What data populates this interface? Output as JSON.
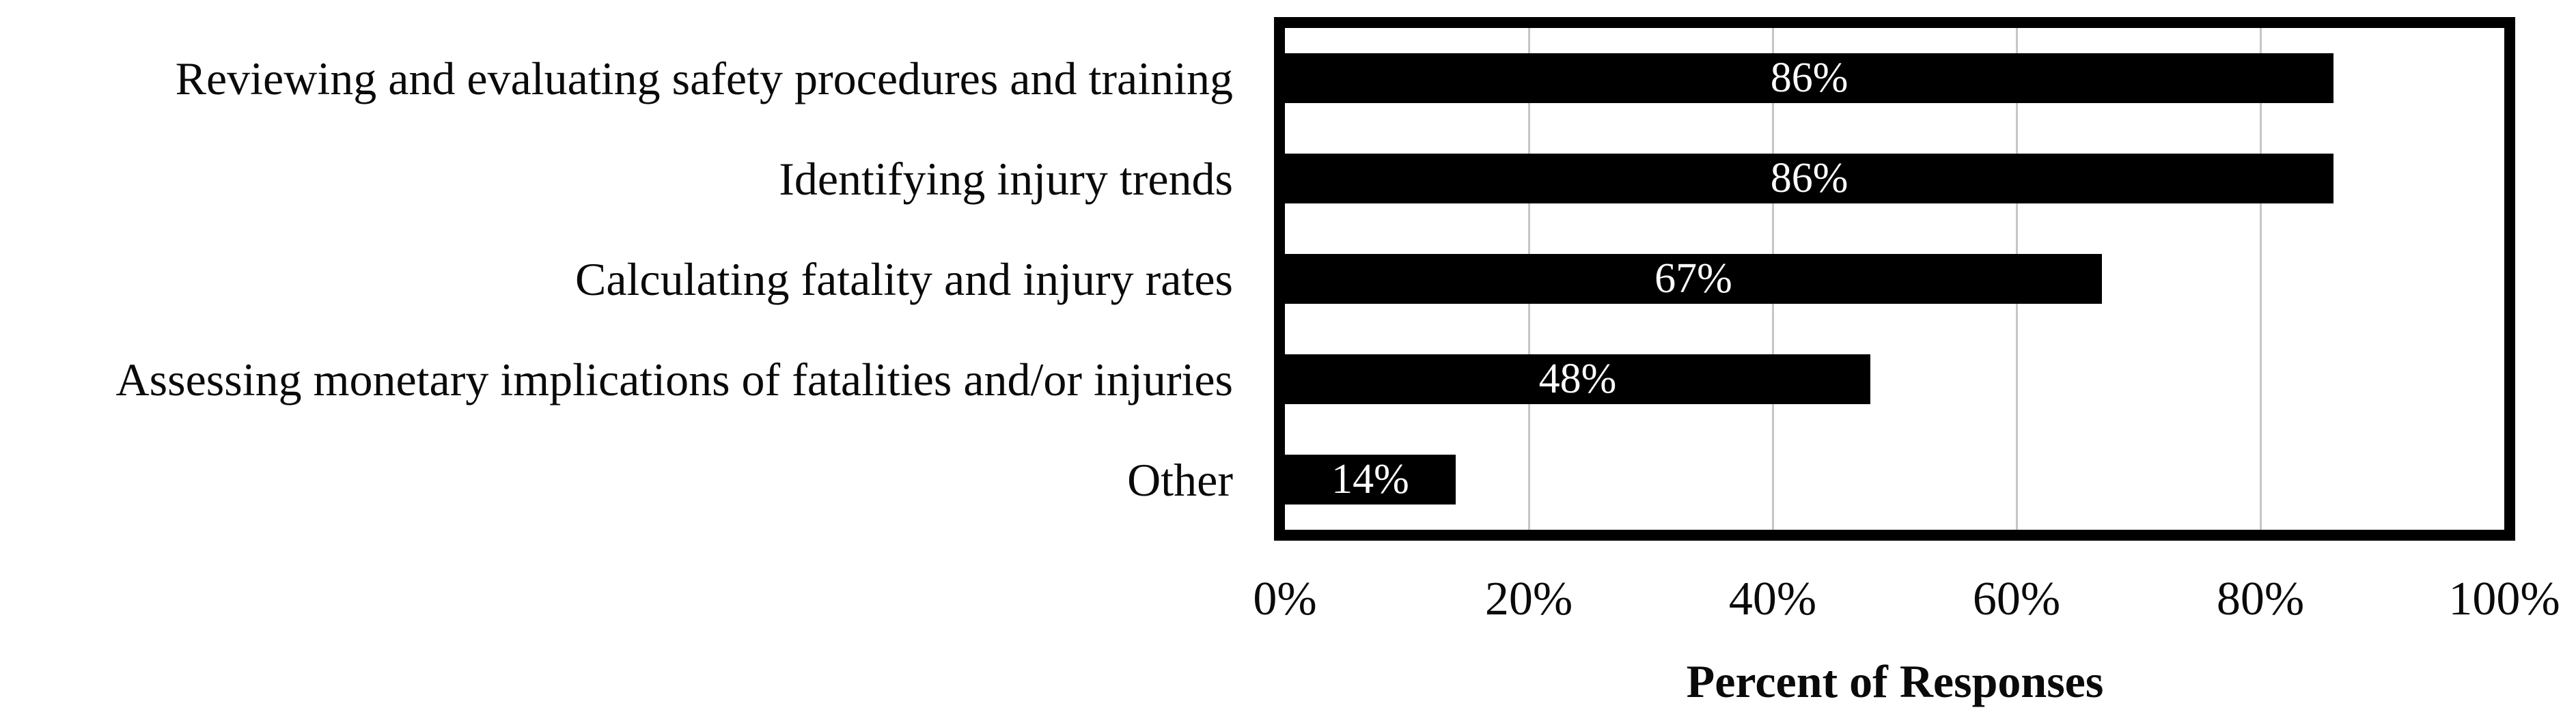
{
  "chart_data": {
    "type": "bar",
    "orientation": "horizontal",
    "title": "",
    "categories": [
      "Reviewing and evaluating safety procedures and training",
      "Identifying injury trends",
      "Calculating fatality and injury rates",
      "Assessing monetary implications of fatalities and/or injuries",
      "Other"
    ],
    "values": [
      86,
      86,
      67,
      48,
      14
    ],
    "value_labels": [
      "86%",
      "86%",
      "67%",
      "48%",
      "14%"
    ],
    "xlabel": "Percent of Responses",
    "ylabel": "",
    "x_ticks": [
      "0%",
      "20%",
      "40%",
      "60%",
      "80%",
      "100%"
    ],
    "x_tick_values": [
      0,
      20,
      40,
      60,
      80,
      100
    ],
    "xlim": [
      0,
      100
    ],
    "grid": "vertical-gridlines-at-20-percent",
    "legend": "none",
    "bar_color": "#000000",
    "value_label_color": "#ffffff",
    "gridline_color": "#c6c6c6",
    "frame_color": "#000000"
  }
}
